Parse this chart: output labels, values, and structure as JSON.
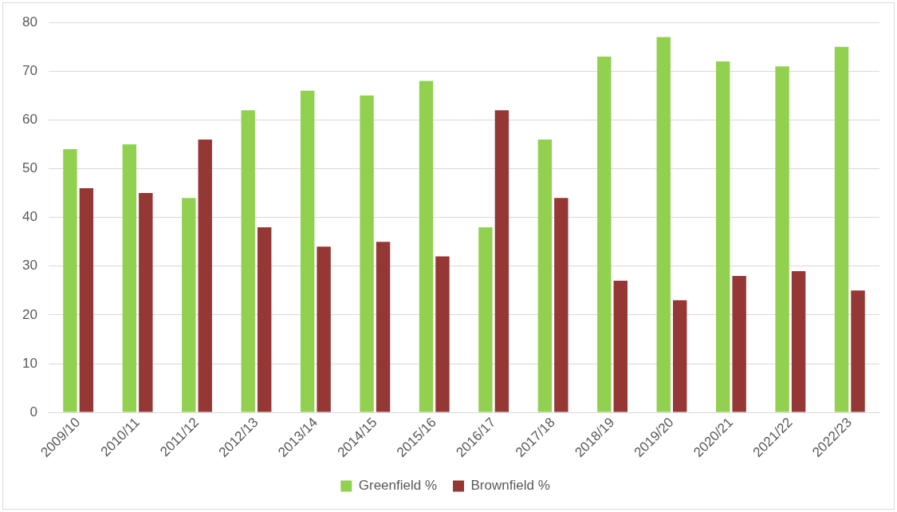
{
  "chart_data": {
    "type": "bar",
    "categories": [
      "2009/10",
      "2010/11",
      "2011/12",
      "2012/13",
      "2013/14",
      "2014/15",
      "2015/16",
      "2016/17",
      "2017/18",
      "2018/19",
      "2019/20",
      "2020/21",
      "2021/22",
      "2022/23"
    ],
    "series": [
      {
        "name": "Greenfield %",
        "color": "#92d050",
        "values": [
          54,
          55,
          44,
          62,
          66,
          65,
          68,
          38,
          56,
          73,
          77,
          72,
          71,
          75
        ]
      },
      {
        "name": "Brownfield %",
        "color": "#953735",
        "values": [
          46,
          45,
          56,
          38,
          34,
          35,
          32,
          62,
          44,
          27,
          23,
          28,
          29,
          25
        ]
      }
    ],
    "ylim": [
      0,
      80
    ],
    "yticks": [
      0,
      10,
      20,
      30,
      40,
      50,
      60,
      70,
      80
    ],
    "grid": "y",
    "legend": "bottom"
  }
}
